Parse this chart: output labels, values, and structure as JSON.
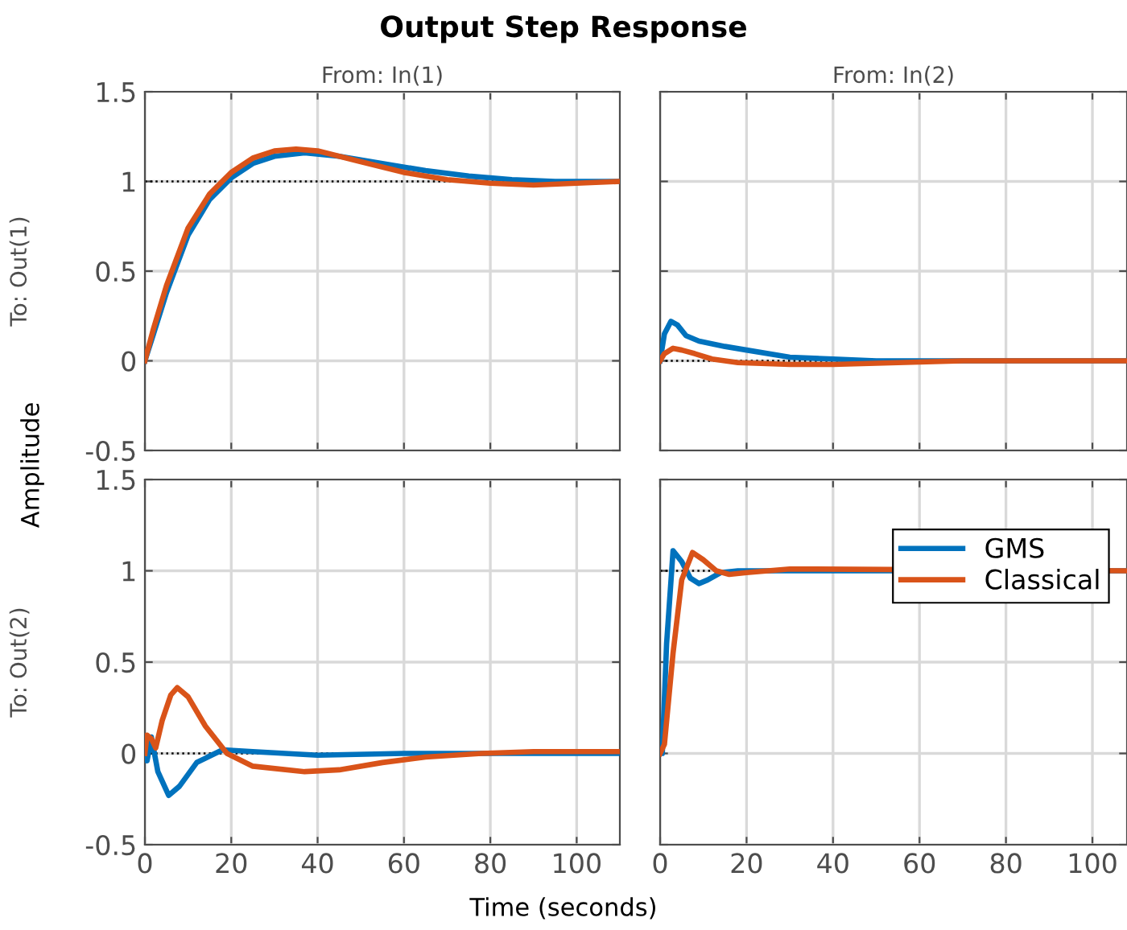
{
  "chart_data": [
    {
      "type": "line",
      "title": "Output Step Response",
      "subtitle": "From: In(1)",
      "ylabel": "To: Out(1)",
      "annotations": [
        "Amplitude"
      ],
      "xlim": [
        0,
        110
      ],
      "xticks": [
        0,
        20,
        40,
        60,
        80,
        100
      ],
      "ylim": [
        -0.5,
        1.5
      ],
      "yticks": [
        -0.5,
        0,
        0.5,
        1,
        1.5
      ],
      "grid": true,
      "tick_labels": "y",
      "line_style": "solid",
      "ref_lines": [
        {
          "axis": "y",
          "value": 1,
          "color": "#000000",
          "line_style": "dotted"
        }
      ],
      "series": [
        {
          "color": "#0072bd",
          "x": [
            0,
            2,
            5,
            10,
            15,
            20,
            25,
            30,
            37,
            45,
            55,
            65,
            75,
            85,
            95,
            110
          ],
          "values": [
            0,
            0.15,
            0.38,
            0.7,
            0.9,
            1.02,
            1.1,
            1.14,
            1.16,
            1.14,
            1.1,
            1.06,
            1.03,
            1.01,
            1.0,
            1.0
          ]
        },
        {
          "color": "#d95319",
          "x": [
            0,
            2,
            5,
            10,
            15,
            20,
            25,
            30,
            35,
            40,
            50,
            60,
            70,
            80,
            90,
            100,
            110
          ],
          "values": [
            0,
            0.18,
            0.42,
            0.74,
            0.93,
            1.05,
            1.13,
            1.17,
            1.18,
            1.17,
            1.11,
            1.05,
            1.01,
            0.99,
            0.98,
            0.99,
            1.0
          ]
        }
      ]
    },
    {
      "type": "line",
      "subtitle": "From: In(2)",
      "xlim": [
        0,
        108
      ],
      "xticks": [
        0,
        20,
        40,
        60,
        80,
        100
      ],
      "ylim": [
        -0.5,
        1.5
      ],
      "yticks": [
        -0.5,
        0,
        0.5,
        1,
        1.5
      ],
      "grid": true,
      "tick_labels": false,
      "line_style": "solid",
      "ref_lines": [
        {
          "axis": "y",
          "value": 0,
          "color": "#000000",
          "line_style": "dotted"
        }
      ],
      "series": [
        {
          "color": "#0072bd",
          "x": [
            0,
            1,
            2.5,
            4,
            6,
            9,
            15,
            20,
            30,
            40,
            50,
            108
          ],
          "values": [
            0,
            0.15,
            0.22,
            0.2,
            0.14,
            0.11,
            0.08,
            0.06,
            0.02,
            0.01,
            0,
            0
          ]
        },
        {
          "color": "#d95319",
          "x": [
            0,
            1,
            3,
            5,
            8,
            12,
            18,
            30,
            40,
            55,
            70,
            108
          ],
          "values": [
            0,
            0.04,
            0.07,
            0.06,
            0.04,
            0.01,
            -0.01,
            -0.02,
            -0.02,
            -0.01,
            0,
            0
          ]
        }
      ]
    },
    {
      "type": "line",
      "xlabel": "Time (seconds)",
      "ylabel": "To: Out(2)",
      "xlim": [
        0,
        110
      ],
      "xticks": [
        0,
        20,
        40,
        60,
        80,
        100
      ],
      "ylim": [
        -0.5,
        1.5
      ],
      "yticks": [
        -0.5,
        0,
        0.5,
        1,
        1.5
      ],
      "grid": true,
      "line_style": "solid",
      "ref_lines": [
        {
          "axis": "y",
          "value": 0,
          "color": "#000000",
          "line_style": "dotted"
        }
      ],
      "series": [
        {
          "color": "#0072bd",
          "x": [
            0,
            0.5,
            1.5,
            3,
            5.5,
            8,
            12,
            18,
            25,
            40,
            60,
            110
          ],
          "values": [
            0,
            -0.04,
            0.09,
            -0.1,
            -0.23,
            -0.18,
            -0.05,
            0.02,
            0.01,
            -0.01,
            0,
            0
          ]
        },
        {
          "color": "#d95319",
          "x": [
            0,
            0.5,
            1.5,
            2.5,
            4,
            6,
            7.5,
            10,
            14,
            19,
            25,
            37,
            45,
            55,
            65,
            78,
            90,
            110
          ],
          "values": [
            0,
            0.1,
            0.08,
            0.03,
            0.18,
            0.32,
            0.36,
            0.31,
            0.15,
            0,
            -0.07,
            -0.1,
            -0.09,
            -0.05,
            -0.02,
            0,
            0.01,
            0.01
          ]
        }
      ]
    },
    {
      "type": "line",
      "xlim": [
        0,
        108
      ],
      "xticks": [
        0,
        20,
        40,
        60,
        80,
        100
      ],
      "ylim": [
        -0.5,
        1.5
      ],
      "yticks": [
        -0.5,
        0,
        0.5,
        1,
        1.5
      ],
      "grid": true,
      "tick_labels": "x",
      "legend": "top right",
      "line_style": "solid",
      "ref_lines": [
        {
          "axis": "y",
          "value": 1,
          "color": "#000000",
          "line_style": "dotted"
        }
      ],
      "series": [
        {
          "name": "GMS",
          "color": "#0072bd",
          "x": [
            0,
            0.5,
            1.5,
            3,
            5,
            7,
            9,
            11,
            14,
            18,
            108
          ],
          "values": [
            0,
            0,
            0.6,
            1.11,
            1.05,
            0.96,
            0.93,
            0.95,
            0.99,
            1.0,
            1.0
          ]
        },
        {
          "name": "Classical",
          "color": "#d95319",
          "x": [
            0,
            1,
            3,
            5,
            7.5,
            10,
            13,
            16,
            20,
            30,
            108
          ],
          "values": [
            0,
            0.05,
            0.55,
            0.95,
            1.1,
            1.06,
            1.0,
            0.98,
            0.99,
            1.01,
            1.0
          ]
        }
      ]
    }
  ]
}
